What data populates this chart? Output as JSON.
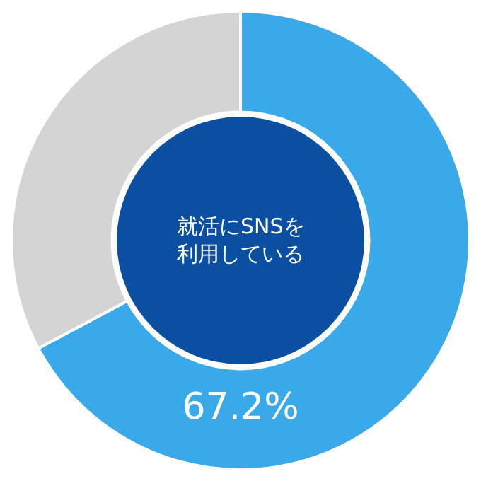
{
  "chart_data": {
    "type": "donut",
    "title": "就活にSNSを利用している",
    "categories": [
      null,
      null
    ],
    "values": [
      67.2,
      32.8
    ],
    "colors": [
      "#3aa9e9",
      "#d4d4d4"
    ],
    "value_labels": [
      "67.2%",
      null
    ],
    "legend": false
  }
}
